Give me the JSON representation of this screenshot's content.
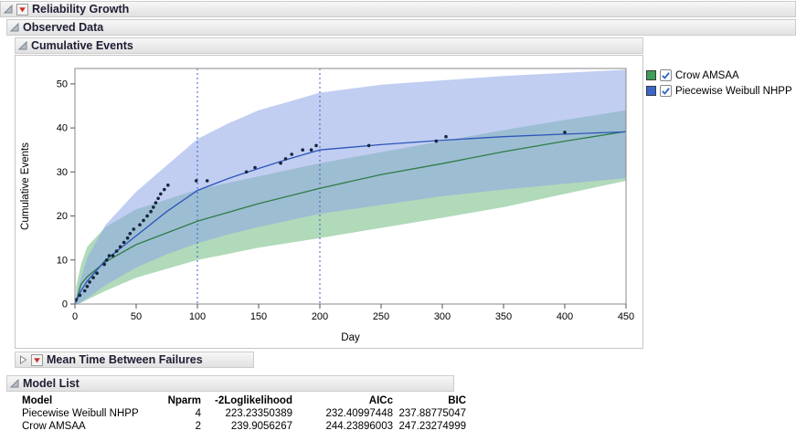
{
  "colors": {
    "header_text": "#1e1e34",
    "hotspot_red": "#cf2b24",
    "reference_line_blue": "#3a5fc8"
  },
  "sections": {
    "reliability_growth": "Reliability Growth",
    "observed_data": "Observed Data",
    "cumulative_events": "Cumulative Events",
    "mtbf": "Mean Time Between Failures",
    "model_list": "Model List"
  },
  "legend": {
    "check_color": "#2f62c4",
    "items": [
      {
        "label": "Crow AMSAA",
        "color": "#3f9e57",
        "checked": true
      },
      {
        "label": "Piecewise Weibull NHPP",
        "color": "#3a66cc",
        "checked": true
      }
    ]
  },
  "chart_data": {
    "type": "line",
    "title": "Cumulative Events",
    "xlabel": "Day",
    "ylabel": "Cumulative Events",
    "xlim": [
      0,
      450
    ],
    "ylim": [
      0,
      53.5
    ],
    "xticks": [
      0,
      50,
      100,
      150,
      200,
      250,
      300,
      350,
      400,
      450
    ],
    "yticks": [
      0,
      10,
      20,
      30,
      40,
      50
    ],
    "grid": false,
    "legend_position": "right-outside",
    "reference_lines_x": [
      100,
      200
    ],
    "reference_line_color": "#3a5fc8",
    "point_color": "#16243c",
    "points": [
      [
        1,
        1
      ],
      [
        4,
        2
      ],
      [
        8,
        3
      ],
      [
        10,
        4
      ],
      [
        12,
        5
      ],
      [
        15,
        6
      ],
      [
        18,
        7
      ],
      [
        24,
        9
      ],
      [
        26,
        10
      ],
      [
        28,
        11
      ],
      [
        31,
        11
      ],
      [
        34,
        12
      ],
      [
        37,
        13
      ],
      [
        40,
        14
      ],
      [
        43,
        15
      ],
      [
        45,
        16
      ],
      [
        48,
        17
      ],
      [
        53,
        18
      ],
      [
        56,
        19
      ],
      [
        59,
        20
      ],
      [
        62,
        21
      ],
      [
        64,
        22
      ],
      [
        66,
        23
      ],
      [
        68,
        24
      ],
      [
        70,
        25
      ],
      [
        73,
        26
      ],
      [
        76,
        27
      ],
      [
        99,
        28
      ],
      [
        108,
        28
      ],
      [
        140,
        30
      ],
      [
        147,
        31
      ],
      [
        168,
        32
      ],
      [
        172,
        33
      ],
      [
        177,
        34
      ],
      [
        186,
        35
      ],
      [
        193,
        35
      ],
      [
        197,
        36
      ],
      [
        240,
        36
      ],
      [
        295,
        37
      ],
      [
        303,
        38
      ],
      [
        400,
        39
      ]
    ],
    "series": [
      {
        "name": "Crow AMSAA",
        "color": "#2e7d46",
        "x": [
          0,
          2,
          5,
          10,
          25,
          50,
          100,
          150,
          200,
          250,
          300,
          350,
          400,
          450
        ],
        "y": [
          0,
          1.6,
          4.5,
          6.2,
          9.6,
          13.5,
          18.8,
          22.8,
          26.3,
          29.4,
          31.9,
          34.6,
          37,
          39.2
        ]
      },
      {
        "name": "Piecewise Weibull NHPP",
        "color": "#2d55b8",
        "x": [
          0,
          2,
          5,
          10,
          25,
          50,
          75,
          100,
          125,
          150,
          175,
          200,
          225,
          250,
          300,
          350,
          400,
          450
        ],
        "y": [
          0,
          1.2,
          3,
          5.2,
          10,
          15.5,
          21,
          25.8,
          28.5,
          30.8,
          33,
          35,
          35.6,
          36.2,
          37.2,
          38,
          38.6,
          39.1
        ]
      }
    ],
    "bands": [
      {
        "name": "Crow AMSAA 95% CI",
        "color": "#6fbc82",
        "opacity": 0.55,
        "x": [
          1,
          5,
          10,
          25,
          50,
          100,
          150,
          200,
          250,
          300,
          350,
          400,
          450
        ],
        "upper": [
          4,
          9,
          13,
          17.5,
          21.5,
          26,
          29,
          32,
          34.5,
          37,
          39.5,
          41.8,
          44
        ],
        "lower": [
          0,
          0.3,
          1,
          3,
          6,
          10,
          12.8,
          15,
          17.3,
          19.6,
          22,
          25,
          28
        ]
      },
      {
        "name": "Piecewise Weibull NHPP 95% CI",
        "color": "#8ea6e8",
        "opacity": 0.55,
        "x": [
          1,
          5,
          10,
          25,
          50,
          75,
          100,
          125,
          150,
          175,
          200,
          250,
          300,
          350,
          400,
          450
        ],
        "upper": [
          2,
          6,
          10.5,
          18,
          25.5,
          31.5,
          37.5,
          41,
          44,
          46,
          48,
          49.8,
          50.8,
          51.8,
          52.5,
          53.2
        ],
        "lower": [
          0,
          0.4,
          1.3,
          4.3,
          8.3,
          11.3,
          13.8,
          15.8,
          17.5,
          19,
          20.5,
          22.5,
          24.5,
          26,
          27.3,
          28.6
        ]
      }
    ]
  },
  "model_table": {
    "columns": [
      "Model",
      "Nparm",
      "-2Loglikelihood",
      "AICc",
      "BIC"
    ],
    "rows": [
      [
        "Piecewise Weibull NHPP",
        "4",
        "223.23350389",
        "232.40997448",
        "237.88775047"
      ],
      [
        "Crow AMSAA",
        "2",
        "239.9056267",
        "244.23896003",
        "247.23274999"
      ]
    ]
  }
}
